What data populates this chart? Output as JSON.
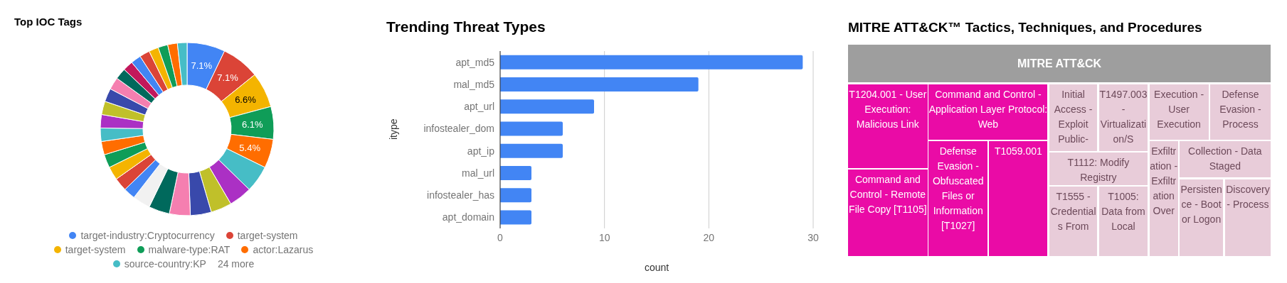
{
  "chart_data": [
    {
      "type": "donut",
      "title": "Top IOC Tags",
      "categories": [
        "target-industry:Cryptocurrency",
        "target-system",
        "target-system",
        "malware-type:RAT",
        "actor:Lazarus",
        "source-country:KP",
        null,
        null,
        null,
        null,
        null,
        null,
        null,
        null,
        null,
        null,
        null,
        null,
        null,
        null,
        null,
        null,
        null,
        null,
        null,
        null,
        null,
        null,
        null,
        null
      ],
      "values": [
        7.1,
        7.1,
        6.6,
        6.1,
        5.4,
        5.0,
        4.3,
        3.9,
        3.9,
        3.9,
        3.9,
        3.3,
        2.2,
        2.5,
        2.5,
        2.5,
        2.5,
        2.5,
        2.5,
        2.5,
        2.5,
        2.3,
        2.1,
        1.9,
        1.9,
        1.9,
        1.8,
        1.8,
        1.8,
        1.8
      ],
      "colors": [
        "#4285f4",
        "#db4437",
        "#f4b400",
        "#0f9d58",
        "#ff6d00",
        "#46bdc6",
        "#ab30c4",
        "#c0c02a",
        "#3949ab",
        "#f57fb0",
        "#00695c",
        "#f1f1f1",
        "#4285f4",
        "#db4437",
        "#f4b400",
        "#0f9d58",
        "#ff6d00",
        "#46bdc6",
        "#ab30c4",
        "#c0c02a",
        "#3949ab",
        "#f57fb0",
        "#00695c",
        "#c2185b",
        "#4285f4",
        "#db4437",
        "#f4b400",
        "#0f9d58",
        "#ff6d00",
        "#46bdc6"
      ],
      "value_labels": [
        "7.1%",
        "7.1%",
        "6.6%",
        "6.1%",
        "5.4%",
        null,
        null,
        null,
        null,
        null,
        null,
        null,
        null,
        null,
        null,
        null,
        null,
        null,
        null,
        null,
        null,
        null,
        null,
        null,
        null,
        null,
        null,
        null,
        null,
        null
      ],
      "legend": "bottom",
      "annotations": [
        "24 more"
      ]
    },
    {
      "type": "bar",
      "orientation": "horizontal",
      "title": "Trending Threat Types",
      "categories": [
        "apt_md5",
        "mal_md5",
        "apt_url",
        "infostealer_dom",
        "apt_ip",
        "mal_url",
        "infostealer_has",
        "apt_domain"
      ],
      "values": [
        29,
        19,
        9,
        6,
        6,
        3,
        3,
        3
      ],
      "color": "#4285f4",
      "xlim": [
        0,
        30
      ],
      "xticks": [
        0,
        10,
        20,
        30
      ],
      "xlabel": "count",
      "ylabel": "itype",
      "grid": "x"
    },
    {
      "type": "other",
      "title": "MITRE ATT&CK™ Tactics, Techniques, and Procedures",
      "categories": [
        "MITRE ATT&CK",
        "T1204.001 - User Execution: Malicious Link",
        "Command and Control - Remote File Copy [T1105]",
        "Command and Control - Application Layer Protocol: Web",
        "Defense Evasion - Obfuscated Files or Information [T1027]",
        "T1059.001",
        "Initial Access - Exploit Public-",
        "T1497.003 - Virtualization/S",
        "T1112: Modify Registry",
        "T1555 - Credentials From",
        "T1005: Data from Local",
        "Execution - User Execution",
        "Defense Evasion - Process",
        "Exfiltration - Exfiltration Over",
        "Collection - Data Staged",
        "Persistence - Boot or Logon",
        "Discovery - Process"
      ],
      "colors": [
        "#9e9e9e",
        "#ea0ba6",
        "#ea0ba6",
        "#ea0ba6",
        "#ea0ba6",
        "#ea0ba6",
        "#e8ccd9",
        "#e8ccd9",
        "#e8ccd9",
        "#e8ccd9",
        "#e8ccd9",
        "#e8ccd9",
        "#e8ccd9",
        "#e8ccd9",
        "#e8ccd9",
        "#e8ccd9",
        "#e8ccd9"
      ]
    }
  ]
}
